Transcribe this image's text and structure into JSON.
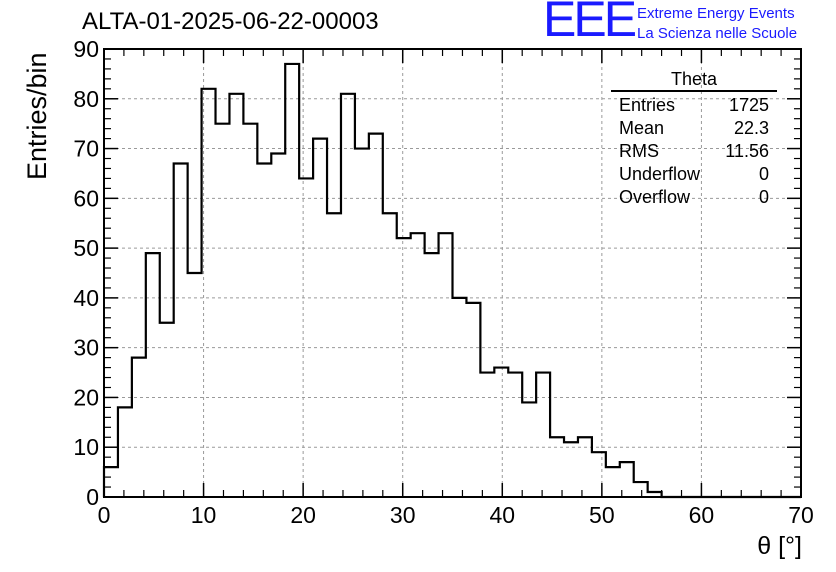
{
  "title": "ALTA-01-2025-06-22-00003",
  "logo": {
    "mark": "EEE",
    "line1": "Extreme Energy Events",
    "line2": "La Scienza nelle Scuole",
    "color": "#1a1aff"
  },
  "stats": {
    "name": "Theta",
    "rows": [
      {
        "label": "Entries",
        "value": "1725"
      },
      {
        "label": "Mean",
        "value": "22.3"
      },
      {
        "label": "RMS",
        "value": "11.56"
      },
      {
        "label": "Underflow",
        "value": "0"
      },
      {
        "label": "Overflow",
        "value": "0"
      }
    ]
  },
  "chart_data": {
    "type": "histogram",
    "title": "ALTA-01-2025-06-22-00003",
    "xlabel": "θ [°]",
    "ylabel": "Entries/bin",
    "xlim": [
      0,
      70
    ],
    "ylim": [
      0,
      90
    ],
    "xticks": [
      0,
      10,
      20,
      30,
      40,
      50,
      60,
      70
    ],
    "yticks": [
      0,
      10,
      20,
      30,
      40,
      50,
      60,
      70,
      80,
      90
    ],
    "grid": true,
    "bin_width": 1.4,
    "bin_edges_start": 0,
    "values": [
      6,
      18,
      28,
      49,
      35,
      67,
      45,
      82,
      75,
      81,
      75,
      67,
      69,
      87,
      64,
      72,
      57,
      81,
      70,
      73,
      57,
      52,
      53,
      49,
      53,
      40,
      39,
      25,
      26,
      25,
      19,
      25,
      12,
      11,
      12,
      9,
      6,
      7,
      3,
      1,
      0,
      0,
      0,
      0,
      0,
      0,
      0,
      0,
      0,
      0
    ],
    "line_color": "#000000"
  }
}
